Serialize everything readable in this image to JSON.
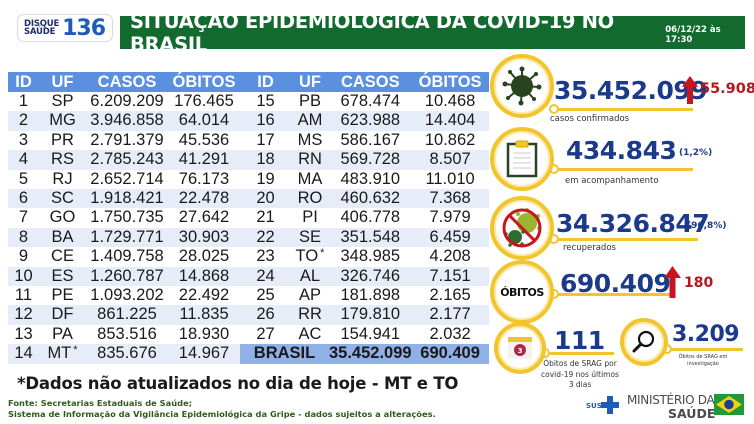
{
  "header": {
    "logo_line1": "DISQUE",
    "logo_line2": "SAÚDE",
    "logo_number": "136",
    "title": "SITUAÇÃO EPIDEMIOLÓGICA DA COVID-19 NO BRASIL",
    "date": "06/12/22 às 17:30"
  },
  "table": {
    "headers": [
      "ID",
      "UF",
      "CASOS",
      "ÓBITOS"
    ],
    "rows_left": [
      {
        "id": "1",
        "uf": "SP",
        "cases": "6.209.209",
        "deaths": "176.465"
      },
      {
        "id": "2",
        "uf": "MG",
        "cases": "3.946.858",
        "deaths": "64.014"
      },
      {
        "id": "3",
        "uf": "PR",
        "cases": "2.791.379",
        "deaths": "45.536"
      },
      {
        "id": "4",
        "uf": "RS",
        "cases": "2.785.243",
        "deaths": "41.291"
      },
      {
        "id": "5",
        "uf": "RJ",
        "cases": "2.652.714",
        "deaths": "76.173"
      },
      {
        "id": "6",
        "uf": "SC",
        "cases": "1.918.421",
        "deaths": "22.478"
      },
      {
        "id": "7",
        "uf": "GO",
        "cases": "1.750.735",
        "deaths": "27.642"
      },
      {
        "id": "8",
        "uf": "BA",
        "cases": "1.729.771",
        "deaths": "30.903"
      },
      {
        "id": "9",
        "uf": "CE",
        "cases": "1.409.758",
        "deaths": "28.025"
      },
      {
        "id": "10",
        "uf": "ES",
        "cases": "1.260.787",
        "deaths": "14.868"
      },
      {
        "id": "11",
        "uf": "PE",
        "cases": "1.093.202",
        "deaths": "22.492"
      },
      {
        "id": "12",
        "uf": "DF",
        "cases": "861.225",
        "deaths": "11.835"
      },
      {
        "id": "13",
        "uf": "PA",
        "cases": "853.516",
        "deaths": "18.930"
      },
      {
        "id": "14",
        "uf": "MT",
        "star": "*",
        "cases": "835.676",
        "deaths": "14.967"
      }
    ],
    "rows_right": [
      {
        "id": "15",
        "uf": "PB",
        "cases": "678.474",
        "deaths": "10.468"
      },
      {
        "id": "16",
        "uf": "AM",
        "cases": "623.988",
        "deaths": "14.404"
      },
      {
        "id": "17",
        "uf": "MS",
        "cases": "586.167",
        "deaths": "10.862"
      },
      {
        "id": "18",
        "uf": "RN",
        "cases": "569.728",
        "deaths": "8.507"
      },
      {
        "id": "19",
        "uf": "MA",
        "cases": "483.910",
        "deaths": "11.010"
      },
      {
        "id": "20",
        "uf": "RO",
        "cases": "460.632",
        "deaths": "7.368"
      },
      {
        "id": "21",
        "uf": "PI",
        "cases": "406.778",
        "deaths": "7.979"
      },
      {
        "id": "22",
        "uf": "SE",
        "cases": "351.548",
        "deaths": "6.459"
      },
      {
        "id": "23",
        "uf": "TO",
        "star": "*",
        "cases": "348.985",
        "deaths": "4.208"
      },
      {
        "id": "24",
        "uf": "AL",
        "cases": "326.746",
        "deaths": "7.151"
      },
      {
        "id": "25",
        "uf": "AP",
        "cases": "181.898",
        "deaths": "2.165"
      },
      {
        "id": "26",
        "uf": "RR",
        "cases": "179.810",
        "deaths": "2.177"
      },
      {
        "id": "27",
        "uf": "AC",
        "cases": "154.941",
        "deaths": "2.032"
      }
    ],
    "total": {
      "label": "BRASIL",
      "cases": "35.452.099",
      "deaths": "690.409"
    }
  },
  "footnote": "*Dados não atualizados no dia de hoje - MT e TO",
  "sources": {
    "line1": "Fonte: Secretarias Estaduais de Saúde;",
    "line2": "Sistema de Informação da Vigilância Epidemiológica da Gripe - dados sujeitos a alterações."
  },
  "stats": {
    "confirmed": {
      "icon": "virus-icon",
      "value": "35.452.099",
      "delta": "55.908",
      "caption": "casos confirmados"
    },
    "monitoring": {
      "icon": "clipboard-icon",
      "value": "434.843",
      "pct": "(1,2%)",
      "caption": "em acompanhamento"
    },
    "recovered": {
      "icon": "no-virus-icon",
      "value": "34.326.847",
      "pct": "(96,8%)",
      "caption": "recuperados"
    },
    "deaths": {
      "label": "ÓBITOS",
      "value": "690.409",
      "delta": "180"
    },
    "srag_recent": {
      "icon": "calendar-icon",
      "calendar_number": "3",
      "value": "111",
      "caption_l1": "Óbitos de SRAG por",
      "caption_l2": "covid-19 nos últimos",
      "caption_l3": "3 dias"
    },
    "srag_investigation": {
      "icon": "magnifier-icon",
      "value": "3.209",
      "caption_l1": "Óbitos de SRAG em",
      "caption_l2": "investigação"
    }
  },
  "footer_logo": {
    "sus": "SUS",
    "ministry_l1": "MINISTÉRIO DA",
    "ministry_l2": "SAÚDE"
  },
  "colors": {
    "title_green": "#136a2f",
    "table_header_blue": "#5b8fe0",
    "row_alt": "#e6edf8",
    "total_row": "#8fb1e8",
    "number_blue": "#1c3a8a",
    "delta_red": "#b2191f",
    "ring_yellow": "#f2c42d",
    "source_green": "#2f5b1f"
  }
}
